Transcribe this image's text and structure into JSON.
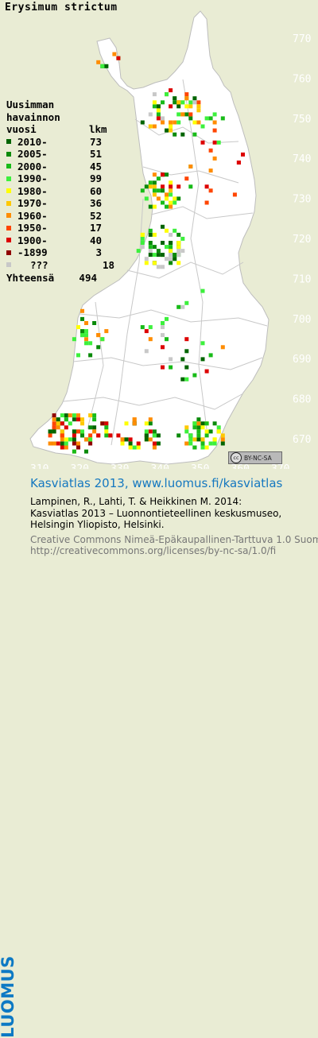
{
  "species": "Erysimum strictum",
  "legend": {
    "header_lines": [
      "Uusimman",
      "havainnon",
      "vuosi"
    ],
    "count_header": "lkm",
    "entries": [
      {
        "label": "2010-",
        "count": "73",
        "color": "#006400"
      },
      {
        "label": "2005-",
        "count": "51",
        "color": "#0a8a0a"
      },
      {
        "label": "2000-",
        "count": "45",
        "color": "#18bb18"
      },
      {
        "label": "1990-",
        "count": "99",
        "color": "#3cf03c"
      },
      {
        "label": "1980-",
        "count": "60",
        "color": "#ffff00"
      },
      {
        "label": "1970-",
        "count": "36",
        "color": "#ffc800"
      },
      {
        "label": "1960-",
        "count": "52",
        "color": "#ff8c00"
      },
      {
        "label": "1950-",
        "count": "17",
        "color": "#ff4500"
      },
      {
        "label": "1900-",
        "count": "40",
        "color": "#dd0000"
      },
      {
        "label": "-1899",
        "count": "3",
        "color": "#900000"
      },
      {
        "label": "???",
        "count": "18",
        "color": "#c8c8c8"
      }
    ],
    "total_label": "Yhteensä",
    "total_count": "494"
  },
  "grid": {
    "y_ticks": [
      "770",
      "760",
      "750",
      "740",
      "730",
      "720",
      "710",
      "700",
      "690",
      "680",
      "670"
    ],
    "x_ticks": [
      "310",
      "320",
      "330",
      "340",
      "350",
      "360",
      "370"
    ]
  },
  "license_badge": {
    "cc": "cc",
    "text": "BY-NC-SA"
  },
  "footer": {
    "logo": "LUOMUS",
    "site": "Kasviatlas 2013, www.luomus.fi/kasviatlas",
    "citation_lines": [
      "Lampinen, R., Lahti, T. & Heikkinen M. 2014:",
      "Kasviatlas 2013 – Luonnontieteellinen keskusmuseo,",
      "Helsingin Yliopisto, Helsinki."
    ],
    "license_lines": [
      "Creative Commons Nimeä-Epäkaupallinen-Tarttuva 1.0 Suomi",
      "http://creativecommons.org/licenses/by-nc-sa/1.0/fi"
    ]
  },
  "colors": {
    "background": "#e9ecd4",
    "land": "#ffffff",
    "borders": "#c8c8c8",
    "logo_blue": "#0d79c4"
  }
}
